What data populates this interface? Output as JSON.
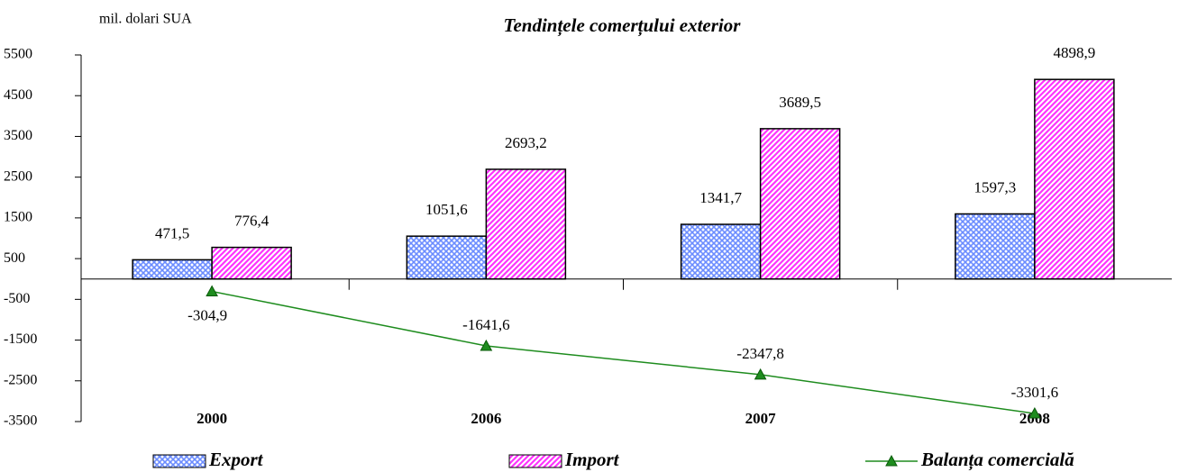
{
  "chart_data": {
    "type": "bar",
    "title": "Tendințele comerțului exterior",
    "y_label": "mil. dolari SUA",
    "categories": [
      "2000",
      "2006",
      "2007",
      "2008"
    ],
    "series": [
      {
        "name": "Export",
        "type": "bar",
        "color": "#6b8cff",
        "values": [
          471.5,
          1051.6,
          1341.7,
          1597.3
        ],
        "value_labels": [
          "471,5",
          "1051,6",
          "1341,7",
          "1597,3"
        ]
      },
      {
        "name": "Import",
        "type": "bar",
        "color": "#ff33ff",
        "values": [
          776.4,
          2693.2,
          3689.5,
          4898.9
        ],
        "value_labels": [
          "776,4",
          "2693,2",
          "3689,5",
          "4898,9"
        ]
      },
      {
        "name": "Balanța comercială",
        "type": "line",
        "color": "#1e8c1e",
        "values": [
          -304.9,
          -1641.6,
          -2347.8,
          -3301.6
        ],
        "value_labels": [
          "-304,9",
          "-1641,6",
          "-2347,8",
          "-3301,6"
        ]
      }
    ],
    "ylim": [
      -3500,
      5500
    ],
    "yticks": [
      -3500,
      -2500,
      -1500,
      -500,
      500,
      1500,
      2500,
      3500,
      4500,
      5500
    ],
    "legend": "bottom"
  }
}
